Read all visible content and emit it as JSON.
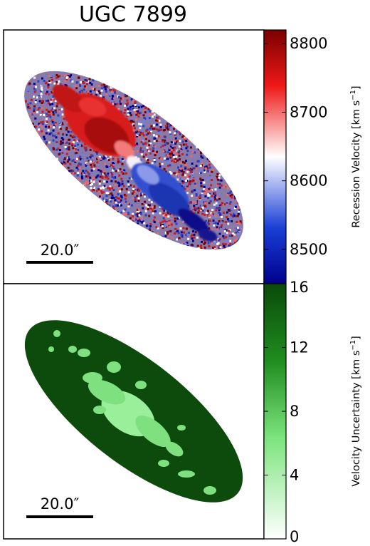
{
  "title": "UGC 7899",
  "velocity_panel": {
    "scalebar_label": "20.0″",
    "colorbar": {
      "label": "Recession Velocity [km s$^{-1}$]",
      "label_text": "Recession Velocity [km s",
      "label_sup": "−1",
      "label_close": "]",
      "min": 8450,
      "max": 8820,
      "ticks": [
        "8800",
        "8700",
        "8600",
        "8500"
      ],
      "colors": [
        "#00008c",
        "#1a3fd6",
        "#ffffff",
        "#ef1818",
        "#7a0000"
      ]
    }
  },
  "uncertainty_panel": {
    "scalebar_label": "20.0″",
    "colorbar": {
      "label_text": "Velocity Uncertainty [km s",
      "label_sup": "−1",
      "label_close": "]",
      "min": 0,
      "max": 16,
      "ticks": [
        "16",
        "12",
        "8",
        "4",
        "0"
      ],
      "colors": [
        "#ffffff",
        "#7be37b",
        "#1f8c1f",
        "#0b4a0b"
      ]
    }
  }
}
